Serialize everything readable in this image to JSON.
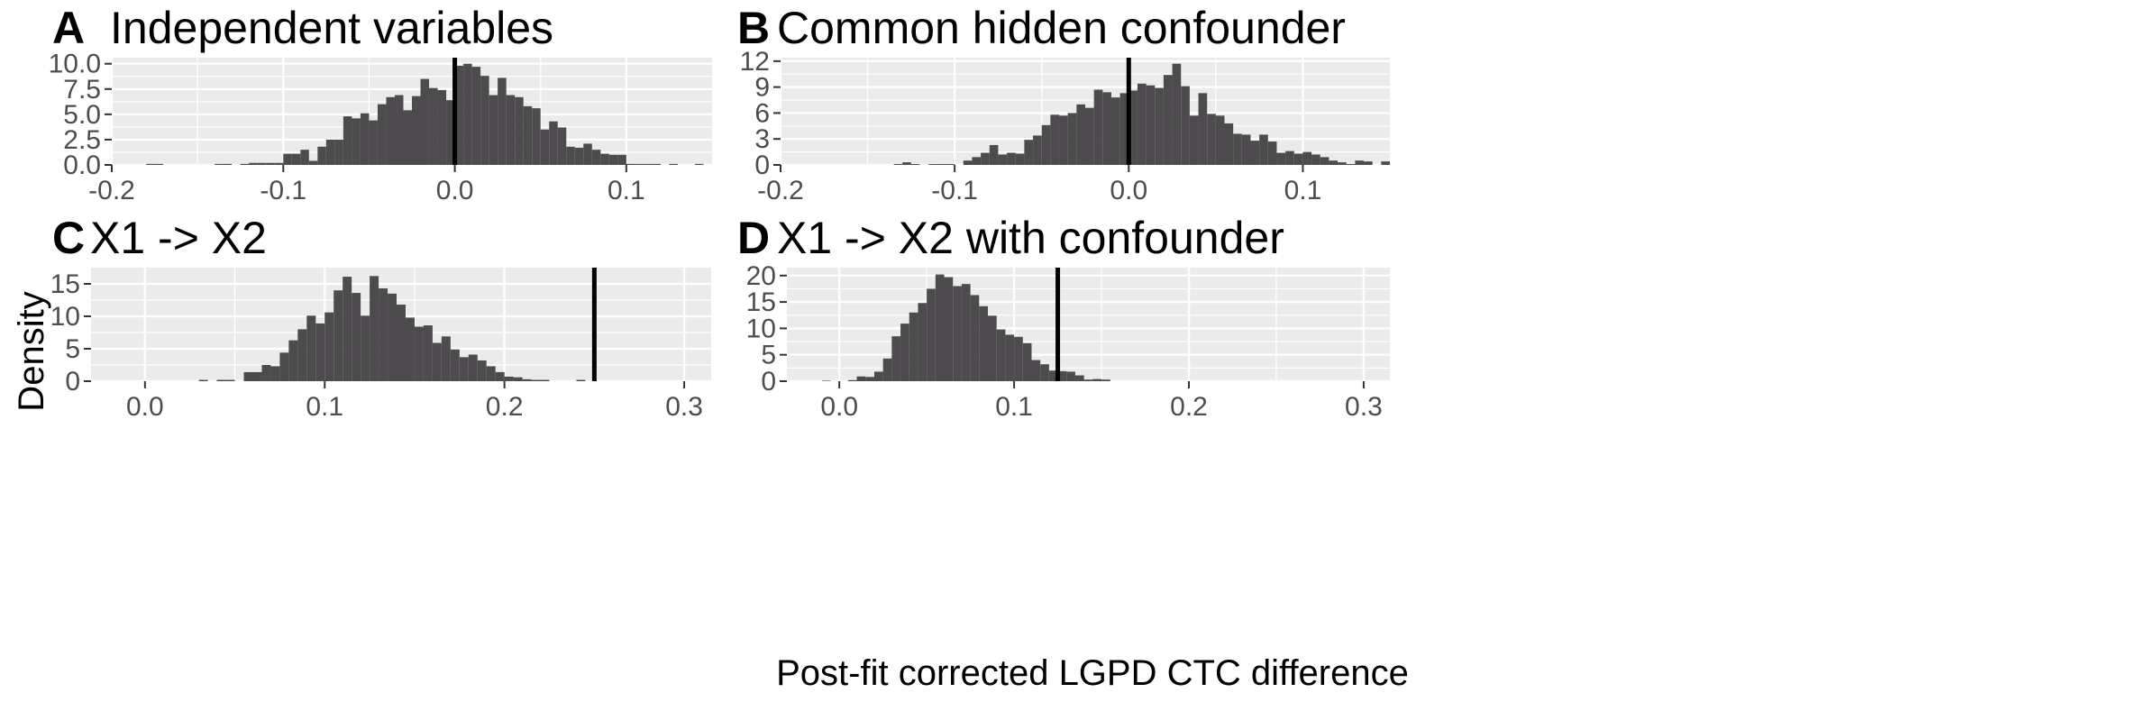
{
  "figure": {
    "ylabel": "Density",
    "xlabel": "Post-fit corrected LGPD CTC difference"
  },
  "colors": {
    "panel_background": "#ebebeb",
    "grid": "#ffffff",
    "bar": "#4d4b4d",
    "reference_line": "#000000"
  },
  "chart_data": [
    {
      "type": "bar",
      "panel": "A",
      "title": "Independent variables",
      "xlim": [
        -0.2,
        0.15
      ],
      "ylim": [
        0,
        10.6
      ],
      "xticks": [
        -0.2,
        -0.1,
        0.0,
        0.1
      ],
      "xtick_labels": [
        "-0.2",
        "-0.1",
        "0.0",
        "0.1"
      ],
      "yticks": [
        0,
        2.5,
        5,
        7.5,
        10
      ],
      "ytick_labels": [
        "0.0",
        "2.5",
        "5.0",
        "7.5",
        "10.0"
      ],
      "bin_start": -0.2,
      "bin_width": 0.005,
      "values": [
        0,
        0,
        0,
        0,
        0.1,
        0.1,
        0,
        0,
        0,
        0,
        0,
        0,
        0.1,
        0.1,
        0,
        0.1,
        0.2,
        0.2,
        0.2,
        0.2,
        1.1,
        1.1,
        1.5,
        0.4,
        1.8,
        2.5,
        2.5,
        4.8,
        4.6,
        5.1,
        4.4,
        6.0,
        6.7,
        6.9,
        5.4,
        6.8,
        8.5,
        7.6,
        7.4,
        6.4,
        9.8,
        10.0,
        9.7,
        8.8,
        6.9,
        8.6,
        6.9,
        6.7,
        5.8,
        5.6,
        3.5,
        4.3,
        3.7,
        1.8,
        1.7,
        2.1,
        1.5,
        1.1,
        1.0,
        1.0,
        0.1,
        0.1,
        0.1,
        0.1,
        0,
        0.1,
        0,
        0,
        0.1,
        0
      ],
      "reference_x": 0.0
    },
    {
      "type": "bar",
      "panel": "B",
      "title": "Common hidden confounder",
      "xlim": [
        -0.2,
        0.15
      ],
      "ylim": [
        0,
        12.4
      ],
      "xticks": [
        -0.2,
        -0.1,
        0.0,
        0.1
      ],
      "xtick_labels": [
        "-0.2",
        "-0.1",
        "0.0",
        "0.1"
      ],
      "yticks": [
        0,
        3,
        6,
        9,
        12
      ],
      "ytick_labels": [
        "0",
        "3",
        "6",
        "9",
        "12"
      ],
      "bin_start": -0.2,
      "bin_width": 0.005,
      "values": [
        0,
        0,
        0,
        0,
        0,
        0,
        0,
        0,
        0,
        0,
        0,
        0,
        0,
        0.1,
        0.3,
        0.1,
        0,
        0.1,
        0.1,
        0.1,
        0,
        0.5,
        0.9,
        1.4,
        2.3,
        1.2,
        1.4,
        1.3,
        2.9,
        3.4,
        4.6,
        5.8,
        5.7,
        6.0,
        7.0,
        6.6,
        8.7,
        8.4,
        7.8,
        8.3,
        8.6,
        9.4,
        9.2,
        8.9,
        10.4,
        11.7,
        9.1,
        5.7,
        8.3,
        5.9,
        5.7,
        4.8,
        3.6,
        3.5,
        2.8,
        3.5,
        2.7,
        1.4,
        1.6,
        1.3,
        1.5,
        1.2,
        0.9,
        0.5,
        0.3,
        0.1,
        0.5,
        0.4,
        0,
        0.4
      ],
      "reference_x": 0.0
    },
    {
      "type": "bar",
      "panel": "C",
      "title": "X1 -> X2",
      "xlim": [
        -0.03,
        0.315
      ],
      "ylim": [
        0,
        17.5
      ],
      "xticks": [
        0.0,
        0.1,
        0.2,
        0.3
      ],
      "xtick_labels": [
        "0.0",
        "0.1",
        "0.2",
        "0.3"
      ],
      "yticks": [
        0,
        5,
        10,
        15
      ],
      "ytick_labels": [
        "0",
        "5",
        "10",
        "15"
      ],
      "bin_start": 0.0,
      "bin_width": 0.005,
      "values": [
        0,
        0,
        0,
        0,
        0,
        0,
        0.2,
        0,
        0.2,
        0.2,
        0,
        1.4,
        1.4,
        2.5,
        2.3,
        4.4,
        6.3,
        8.0,
        10.1,
        8.9,
        10.6,
        14.0,
        16.1,
        13.6,
        10.1,
        16.2,
        14.3,
        13.5,
        11.8,
        9.8,
        8.4,
        8.6,
        5.9,
        6.9,
        4.9,
        3.7,
        4.1,
        3.2,
        2.3,
        1.4,
        0.7,
        0.6,
        0.3,
        0.2,
        0.2,
        0,
        0,
        0,
        0.2,
        0
      ],
      "reference_x": 0.25
    },
    {
      "type": "bar",
      "panel": "D",
      "title": "X1 -> X2 with confounder",
      "xlim": [
        -0.03,
        0.315
      ],
      "ylim": [
        0,
        21.5
      ],
      "xticks": [
        0.0,
        0.1,
        0.2,
        0.3
      ],
      "xtick_labels": [
        "0.0",
        "0.1",
        "0.2",
        "0.3"
      ],
      "yticks": [
        0,
        5,
        10,
        15,
        20
      ],
      "ytick_labels": [
        "0",
        "5",
        "10",
        "15",
        "20"
      ],
      "bin_start": -0.015,
      "bin_width": 0.005,
      "values": [
        0,
        0.1,
        0,
        0,
        0.2,
        0.9,
        0.8,
        1.8,
        4.3,
        8.5,
        10.9,
        13.0,
        14.8,
        17.5,
        20.2,
        19.7,
        18.0,
        18.4,
        16.3,
        14.2,
        12.4,
        9.8,
        8.8,
        8.4,
        7.2,
        4.0,
        3.2,
        2.0,
        1.9,
        1.8,
        1.1,
        0.3,
        0.4,
        0.3
      ],
      "reference_x": 0.125
    }
  ]
}
